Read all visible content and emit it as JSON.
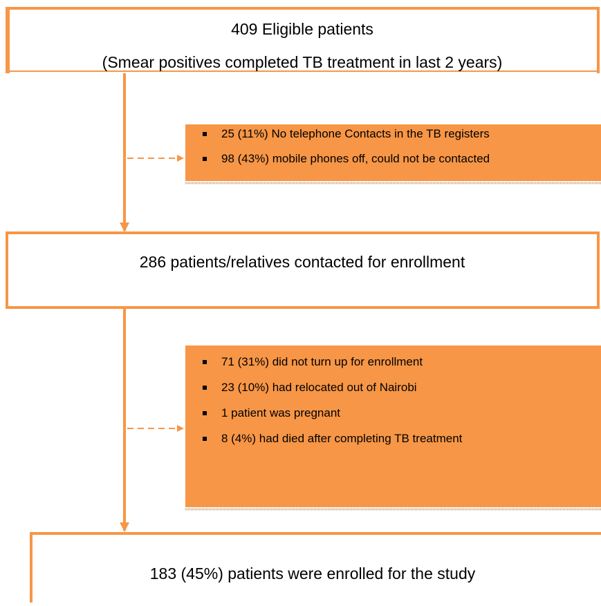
{
  "nodes": [
    {
      "label": "409 Eligible patients",
      "sublabel": "(Smear positives completed TB treatment in last 2 years)"
    },
    {
      "label": "286 patients/relatives contacted for enrollment"
    },
    {
      "label": "183 (45%) patients were enrolled for the study"
    }
  ],
  "exclusions": [
    {
      "items": [
        "25 (11%) No telephone Contacts in the TB registers",
        "98 (43%) mobile phones off, could not be contacted"
      ]
    },
    {
      "items": [
        "71 (31%) did not turn up for enrollment",
        "23 (10%) had relocated out of Nairobi",
        "1 patient was pregnant",
        "8 (4%) had died after completing TB treatment"
      ]
    }
  ]
}
